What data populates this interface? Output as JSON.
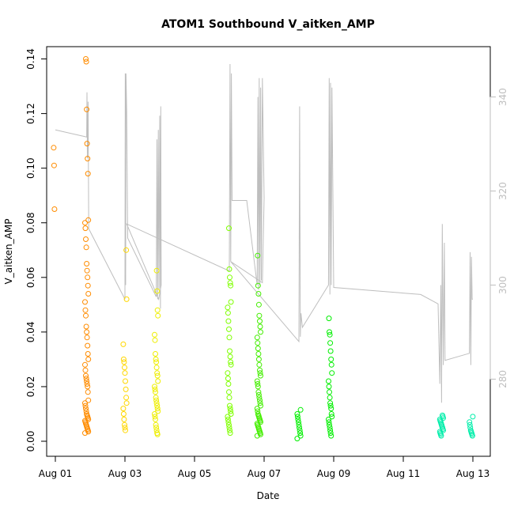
{
  "chart_data": {
    "type": "scatter",
    "title": "ATOM1 Southbound V_aitken_AMP",
    "xlabel": "Date",
    "ylabel": "V_aitken_AMP",
    "x_ticks": [
      "Aug 01",
      "Aug 03",
      "Aug 05",
      "Aug 07",
      "Aug 09",
      "Aug 11",
      "Aug 13"
    ],
    "x_tick_days": [
      1,
      3,
      5,
      7,
      9,
      11,
      13
    ],
    "xlim_days": [
      0.75,
      13.5
    ],
    "y_ticks": [
      "0.00",
      "0.02",
      "0.04",
      "0.06",
      "0.08",
      "0.10",
      "0.12",
      "0.14"
    ],
    "ylim": [
      -0.0055,
      0.1445
    ],
    "y2_ticks": [
      "280",
      "300",
      "320",
      "340"
    ],
    "y2lim": [
      263.6,
      350.7
    ],
    "y2_color": "#bebebe",
    "grid": false,
    "legend": "none",
    "series": [
      {
        "color": "#ff8c00",
        "clusters": [
          {
            "day": 1.0,
            "points": [
              0.1075,
              0.101,
              0.085
            ]
          },
          {
            "day": 1.9,
            "points": [
              0.14,
              0.139,
              0.1215,
              0.109,
              0.1035,
              0.098,
              0.081,
              0.08,
              0.078,
              0.074,
              0.071,
              0.065,
              0.0625,
              0.06,
              0.057,
              0.054,
              0.051,
              0.048,
              0.046,
              0.042,
              0.04,
              0.038,
              0.035,
              0.032,
              0.03,
              0.028,
              0.026,
              0.024,
              0.023,
              0.022,
              0.021,
              0.02,
              0.018,
              0.015,
              0.014,
              0.013,
              0.012,
              0.011,
              0.01,
              0.0095,
              0.009,
              0.0085,
              0.008,
              0.0075,
              0.007,
              0.0065,
              0.006,
              0.0055,
              0.005,
              0.0045,
              0.004,
              0.0035,
              0.003
            ]
          }
        ]
      },
      {
        "color": "#ffd700",
        "clusters": [
          {
            "day": 3.0,
            "points": [
              0.07,
              0.052,
              0.0355,
              0.03,
              0.029,
              0.027,
              0.025,
              0.022,
              0.019,
              0.016,
              0.014,
              0.012,
              0.01,
              0.008,
              0.006,
              0.005,
              0.004
            ]
          }
        ]
      },
      {
        "color": "#eeee00",
        "clusters": [
          {
            "day": 3.9,
            "points": [
              0.0625,
              0.055,
              0.048,
              0.046,
              0.039,
              0.037,
              0.032,
              0.03,
              0.029,
              0.027,
              0.025,
              0.024,
              0.022,
              0.02,
              0.019,
              0.018,
              0.016,
              0.015,
              0.014,
              0.013,
              0.012,
              0.011,
              0.01,
              0.009,
              0.008,
              0.006,
              0.005,
              0.004,
              0.003,
              0.0025
            ]
          }
        ]
      },
      {
        "color": "#7fff00",
        "clusters": [
          {
            "day": 6.0,
            "points": [
              0.078,
              0.063,
              0.06,
              0.058,
              0.057,
              0.051,
              0.049,
              0.047,
              0.044,
              0.041,
              0.038,
              0.033,
              0.031,
              0.029,
              0.028,
              0.025,
              0.023,
              0.021,
              0.018,
              0.016,
              0.013,
              0.012,
              0.011,
              0.01,
              0.009,
              0.008,
              0.007,
              0.006,
              0.005,
              0.004,
              0.003
            ]
          }
        ]
      },
      {
        "color": "#44ee00",
        "clusters": [
          {
            "day": 6.85,
            "points": [
              0.068,
              0.057,
              0.054,
              0.05,
              0.046,
              0.044,
              0.042,
              0.04,
              0.038,
              0.036,
              0.034,
              0.032,
              0.03,
              0.028,
              0.026,
              0.025,
              0.024,
              0.022,
              0.021,
              0.02,
              0.018,
              0.017,
              0.016,
              0.015,
              0.014,
              0.013,
              0.012,
              0.011,
              0.01,
              0.0095,
              0.009,
              0.0085,
              0.008,
              0.0075,
              0.007,
              0.0065,
              0.006,
              0.0055,
              0.005,
              0.0045,
              0.004,
              0.0035,
              0.003,
              0.0025,
              0.002
            ]
          }
        ]
      },
      {
        "color": "#00ee00",
        "clusters": [
          {
            "day": 8.0,
            "points": [
              0.0115,
              0.01,
              0.009,
              0.008,
              0.007,
              0.006,
              0.005,
              0.004,
              0.003,
              0.002,
              0.001
            ]
          },
          {
            "day": 8.9,
            "points": [
              0.045,
              0.04,
              0.039,
              0.036,
              0.033,
              0.03,
              0.028,
              0.025,
              0.022,
              0.02,
              0.018,
              0.016,
              0.014,
              0.013,
              0.012,
              0.01,
              0.009,
              0.008,
              0.007,
              0.006,
              0.005,
              0.004,
              0.003,
              0.002
            ]
          }
        ]
      },
      {
        "color": "#00eeaa",
        "clusters": [
          {
            "day": 12.1,
            "points": [
              0.0095,
              0.009,
              0.0085,
              0.008,
              0.0075,
              0.007,
              0.0065,
              0.006,
              0.0055,
              0.005,
              0.0045,
              0.004,
              0.0035,
              0.003,
              0.0025,
              0.002
            ]
          },
          {
            "day": 12.95,
            "points": [
              0.009,
              0.007,
              0.006,
              0.005,
              0.004,
              0.0035,
              0.003,
              0.0025,
              0.002
            ]
          }
        ]
      }
    ],
    "y2_line": {
      "color": "#bebebe",
      "points": [
        [
          1.0,
          333
        ],
        [
          1.9,
          331.5
        ],
        [
          1.91,
          341
        ],
        [
          1.92,
          327
        ],
        [
          1.94,
          339
        ],
        [
          1.96,
          312
        ],
        [
          3.0,
          297
        ],
        [
          3.01,
          345
        ],
        [
          3.02,
          300
        ],
        [
          3.03,
          345
        ],
        [
          3.05,
          337
        ],
        [
          3.08,
          310
        ],
        [
          3.9,
          297.5
        ],
        [
          3.92,
          331
        ],
        [
          3.94,
          297
        ],
        [
          3.96,
          333
        ],
        [
          3.98,
          299
        ],
        [
          4.0,
          336
        ],
        [
          4.02,
          295
        ],
        [
          4.03,
          338
        ],
        [
          4.04,
          300
        ],
        [
          3.97,
          297
        ],
        [
          3.05,
          313
        ],
        [
          6.0,
          303
        ],
        [
          6.02,
          347
        ],
        [
          6.04,
          305
        ],
        [
          6.06,
          345
        ],
        [
          6.08,
          318
        ],
        [
          6.5,
          318
        ],
        [
          6.8,
          300
        ],
        [
          6.82,
          340
        ],
        [
          6.84,
          299
        ],
        [
          6.86,
          344
        ],
        [
          6.88,
          300
        ],
        [
          6.9,
          342
        ],
        [
          6.92,
          301
        ],
        [
          6.95,
          344
        ],
        [
          7.0,
          318.5
        ],
        [
          6.95,
          300.5
        ],
        [
          6.04,
          305
        ],
        [
          8.0,
          288
        ],
        [
          8.02,
          338
        ],
        [
          8.04,
          289
        ],
        [
          8.06,
          294
        ],
        [
          8.1,
          291
        ],
        [
          8.85,
          300
        ],
        [
          8.87,
          344
        ],
        [
          8.89,
          298
        ],
        [
          8.91,
          343
        ],
        [
          8.93,
          300
        ],
        [
          8.95,
          342
        ],
        [
          9.0,
          299.5
        ],
        [
          11.5,
          298
        ],
        [
          12.0,
          296
        ],
        [
          12.05,
          279
        ],
        [
          12.08,
          300
        ],
        [
          12.1,
          275
        ],
        [
          12.12,
          313
        ],
        [
          12.15,
          283
        ],
        [
          12.18,
          309
        ],
        [
          12.2,
          284
        ],
        [
          12.9,
          285.5
        ],
        [
          12.92,
          307
        ],
        [
          12.94,
          283
        ],
        [
          12.96,
          306
        ],
        [
          12.98,
          297
        ],
        [
          13.0,
          297
        ]
      ]
    }
  }
}
